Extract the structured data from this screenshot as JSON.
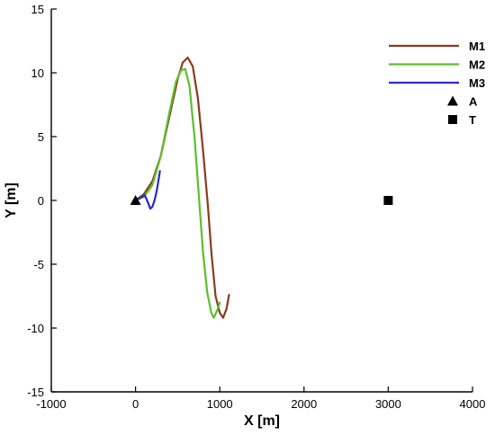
{
  "chart_data": {
    "type": "line",
    "xlabel": "X [m]",
    "ylabel": "Y [m]",
    "xlim": [
      -1000,
      4000
    ],
    "ylim": [
      -15,
      15
    ],
    "x_ticks": [
      -1000,
      0,
      1000,
      2000,
      3000,
      4000
    ],
    "y_ticks": [
      -15,
      -10,
      -5,
      0,
      5,
      10,
      15
    ],
    "x_tick_labels": [
      "-1000",
      "0",
      "1000",
      "2000",
      "3000",
      "4000"
    ],
    "y_tick_labels": [
      "-15",
      "-10",
      "-5",
      "0",
      "5",
      "10",
      "15"
    ],
    "grid": false,
    "legend_position": "top-right",
    "series": [
      {
        "name": "M1",
        "kind": "line",
        "color": "#8b3a1e",
        "points": [
          [
            0,
            0
          ],
          [
            100,
            0.5
          ],
          [
            200,
            1.5
          ],
          [
            300,
            3.5
          ],
          [
            400,
            6.5
          ],
          [
            500,
            9.5
          ],
          [
            560,
            10.8
          ],
          [
            620,
            11.2
          ],
          [
            680,
            10.5
          ],
          [
            740,
            8
          ],
          [
            800,
            4
          ],
          [
            860,
            -0.5
          ],
          [
            900,
            -4
          ],
          [
            950,
            -7.5
          ],
          [
            1000,
            -8.8
          ],
          [
            1040,
            -9.2
          ],
          [
            1080,
            -8.5
          ],
          [
            1110,
            -7.4
          ]
        ]
      },
      {
        "name": "M2",
        "kind": "line",
        "color": "#5cbf2a",
        "points": [
          [
            0,
            0
          ],
          [
            100,
            0.3
          ],
          [
            200,
            1.2
          ],
          [
            300,
            3.5
          ],
          [
            400,
            6.8
          ],
          [
            480,
            9.3
          ],
          [
            540,
            10.2
          ],
          [
            590,
            10.3
          ],
          [
            640,
            9
          ],
          [
            700,
            5
          ],
          [
            750,
            0.5
          ],
          [
            800,
            -4
          ],
          [
            850,
            -7.2
          ],
          [
            900,
            -8.8
          ],
          [
            930,
            -9.2
          ],
          [
            970,
            -8.6
          ],
          [
            1000,
            -8
          ]
        ]
      },
      {
        "name": "M3",
        "kind": "line",
        "color": "#2a2ac8",
        "points": [
          [
            0,
            0
          ],
          [
            60,
            0.2
          ],
          [
            110,
            0.4
          ],
          [
            150,
            -0.2
          ],
          [
            175,
            -0.65
          ],
          [
            200,
            -0.5
          ],
          [
            225,
            0
          ],
          [
            250,
            0.7
          ],
          [
            270,
            1.5
          ],
          [
            290,
            2.3
          ]
        ]
      },
      {
        "name": "A",
        "kind": "marker",
        "marker": "triangle",
        "color": "#000000",
        "points": [
          [
            0,
            0
          ]
        ]
      },
      {
        "name": "T",
        "kind": "marker",
        "marker": "square",
        "color": "#000000",
        "points": [
          [
            3000,
            0
          ]
        ]
      }
    ]
  }
}
